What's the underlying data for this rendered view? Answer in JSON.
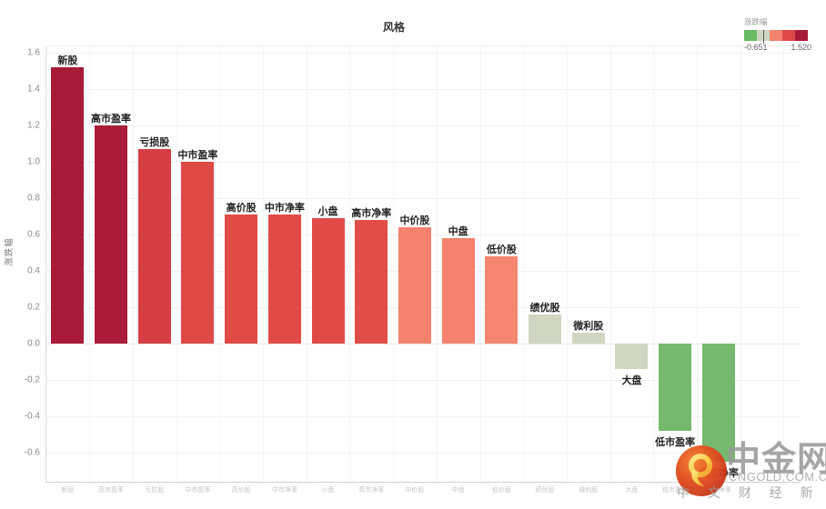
{
  "chart_data": {
    "type": "bar",
    "title": "风格",
    "ylabel": "涨跌幅",
    "categories": [
      "新股",
      "高市盈率",
      "亏损股",
      "中市盈率",
      "高价股",
      "中市净率",
      "小盘",
      "高市净率",
      "中价股",
      "中盘",
      "低价股",
      "绩优股",
      "微利股",
      "大盘",
      "低市盈率",
      "低市净率"
    ],
    "values": [
      1.52,
      1.2,
      1.07,
      1.0,
      0.71,
      0.71,
      0.69,
      0.68,
      0.64,
      0.58,
      0.48,
      0.16,
      0.06,
      -0.14,
      -0.48,
      -0.65
    ],
    "bar_colors": [
      "#a81a39",
      "#ab1c3a",
      "#d63d44",
      "#de4845",
      "#e04b46",
      "#e04b46",
      "#e04b46",
      "#e14e48",
      "#f4826e",
      "#f4826e",
      "#f5866f",
      "#d0d6c2",
      "#d0d6c2",
      "#d0d6c2",
      "#76b96e",
      "#76b96e"
    ],
    "y_ticks": [
      1.6,
      1.4,
      1.2,
      1.0,
      0.8,
      0.6,
      0.4,
      0.2,
      0.0,
      -0.2,
      -0.4,
      -0.6
    ],
    "ylim": [
      -0.76,
      1.64
    ],
    "grid": true,
    "legend_position": "top-right",
    "legend": {
      "title": "涨跌幅",
      "min_label": "-0.651",
      "max_label": "1.520",
      "colors": [
        "#6abc63",
        "#cdd6c1",
        "#f4826e",
        "#dd4747",
        "#a81a39"
      ]
    }
  },
  "watermark": {
    "brand": "中金网",
    "domain": "CNGOLD.COM.CN",
    "tagline": "中 文 财 经 新 媒 体",
    "logo_colors": {
      "outer": "#d93a1c",
      "inner": "#f6a92c",
      "flame": "#fbd24a"
    }
  }
}
